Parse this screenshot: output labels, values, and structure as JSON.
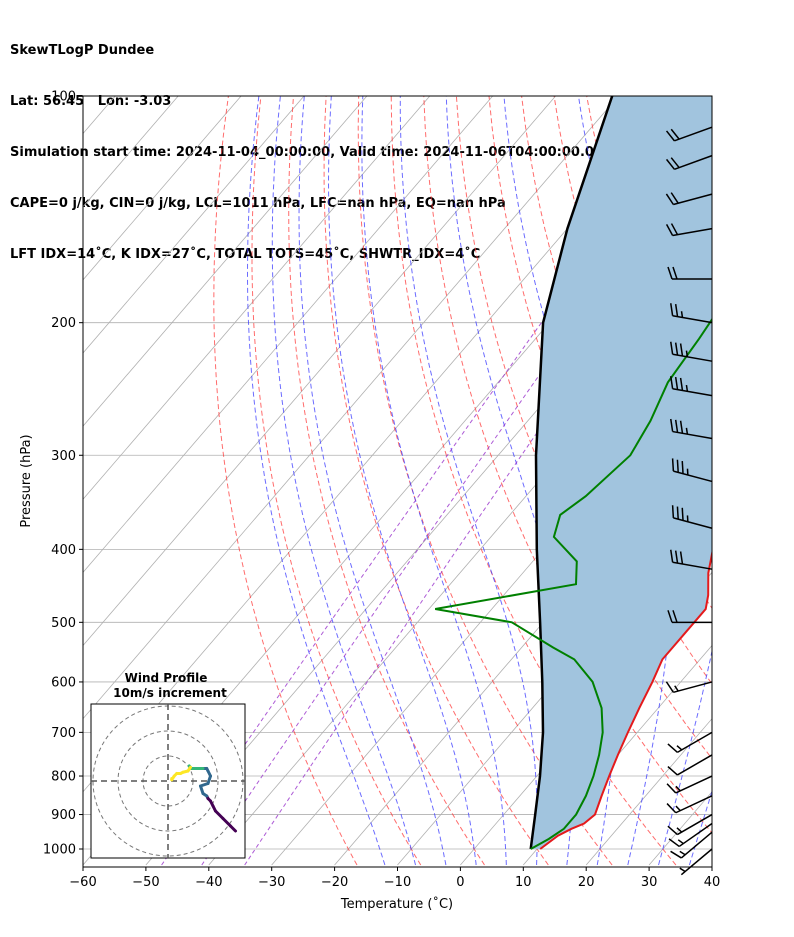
{
  "header": {
    "lines": [
      "SkewTLogP Dundee",
      "Lat: 56.45   Lon: -3.03",
      "Simulation start time: 2024-11-04_00:00:00, Valid time: 2024-11-06T04:00:00.00",
      "CAPE=0 j/kg, CIN=0 j/kg, LCL=1011 hPa, LFC=nan hPa, EQ=nan hPa",
      "LFT IDX=14˚C, K IDX=27˚C, TOTAL TOTS=45˚C, SHWTR_IDX=4˚C"
    ]
  },
  "chart_data": {
    "type": "skewt-logp",
    "xlabel": "Temperature (˚C)",
    "ylabel": "Pressure (hPa)",
    "xlim": [
      -60,
      40
    ],
    "ylim": [
      1050,
      100
    ],
    "x_ticks": [
      -60,
      -50,
      -40,
      -30,
      -20,
      -10,
      0,
      10,
      20,
      30,
      40
    ],
    "x_tick_labels": [
      "−60",
      "−50",
      "−40",
      "−30",
      "−20",
      "−10",
      "0",
      "10",
      "20",
      "30",
      "40"
    ],
    "y_ticks": [
      1000,
      900,
      800,
      700,
      600,
      500,
      400,
      300,
      200,
      100
    ],
    "y_tick_labels": [
      "1000",
      "900",
      "800",
      "700",
      "600",
      "500",
      "400",
      "300",
      "200",
      "100"
    ],
    "grid": true,
    "temperature": {
      "color": "#e41a1c",
      "points": [
        [
          1000,
          10.5
        ],
        [
          960,
          11.5
        ],
        [
          940,
          12.7
        ],
        [
          925,
          14
        ],
        [
          900,
          14.5
        ],
        [
          850,
          13
        ],
        [
          800,
          11.5
        ],
        [
          750,
          10
        ],
        [
          700,
          8.5
        ],
        [
          650,
          7
        ],
        [
          600,
          5.5
        ],
        [
          560,
          4
        ],
        [
          520,
          4
        ],
        [
          480,
          4
        ],
        [
          460,
          2.5
        ],
        [
          430,
          -0.5
        ],
        [
          400,
          -3
        ],
        [
          350,
          -8
        ],
        [
          300,
          -14
        ],
        [
          270,
          -18
        ],
        [
          250,
          -21
        ],
        [
          230,
          -22.5
        ],
        [
          210,
          -23.5
        ],
        [
          190,
          -24.5
        ],
        [
          175,
          -27
        ],
        [
          160,
          -28
        ],
        [
          145,
          -28.5
        ],
        [
          135,
          -28
        ],
        [
          125,
          -29
        ],
        [
          115,
          -29.5
        ],
        [
          108,
          -30
        ],
        [
          100,
          -31
        ]
      ]
    },
    "dewpoint": {
      "color": "#008000",
      "points": [
        [
          1000,
          9
        ],
        [
          970,
          10.5
        ],
        [
          940,
          11.5
        ],
        [
          900,
          11.5
        ],
        [
          850,
          10.5
        ],
        [
          800,
          9
        ],
        [
          750,
          7
        ],
        [
          700,
          4.5
        ],
        [
          650,
          1
        ],
        [
          600,
          -4
        ],
        [
          560,
          -10
        ],
        [
          540,
          -15
        ],
        [
          500,
          -25
        ],
        [
          480,
          -39
        ],
        [
          445,
          -20
        ],
        [
          415,
          -23
        ],
        [
          385,
          -30
        ],
        [
          360,
          -32
        ],
        [
          340,
          -30.5
        ],
        [
          300,
          -29
        ],
        [
          270,
          -30.5
        ],
        [
          240,
          -33
        ],
        [
          210,
          -34
        ],
        [
          190,
          -35
        ],
        [
          175,
          -35
        ],
        [
          160,
          -34.5
        ],
        [
          145,
          -36
        ],
        [
          135,
          -34
        ],
        [
          115,
          -33
        ],
        [
          100,
          -33
        ]
      ]
    },
    "parcel_profile": {
      "color": "#000000",
      "points": [
        [
          1000,
          9
        ],
        [
          900,
          5
        ],
        [
          800,
          0.5
        ],
        [
          700,
          -5
        ],
        [
          600,
          -12
        ],
        [
          500,
          -20.5
        ],
        [
          400,
          -31
        ],
        [
          300,
          -44
        ],
        [
          200,
          -61
        ],
        [
          150,
          -70
        ],
        [
          100,
          -81
        ]
      ]
    },
    "cape_cin_shading_color": "#a1c4de",
    "dry_adiabats": {
      "color": "#ff3b3b",
      "theta_C": [
        -20,
        -10,
        0,
        10,
        20,
        30,
        40,
        50,
        60,
        70,
        80,
        90,
        100,
        110,
        120
      ]
    },
    "moist_adiabats": {
      "color": "#3b3bff",
      "start_T_C": [
        -15,
        -10,
        -5,
        0,
        5,
        10,
        15,
        20,
        25,
        30,
        35
      ]
    },
    "mixing_ratio_lines": {
      "color": "#9932cc",
      "w_gkg": [
        0.05,
        0.1,
        0.2
      ]
    },
    "wind_barbs": [
      {
        "p": 1000,
        "speed_kt": 8,
        "dir": 230
      },
      {
        "p": 950,
        "speed_kt": 15,
        "dir": 230
      },
      {
        "p": 925,
        "speed_kt": 15,
        "dir": 235
      },
      {
        "p": 900,
        "speed_kt": 15,
        "dir": 240
      },
      {
        "p": 850,
        "speed_kt": 15,
        "dir": 245
      },
      {
        "p": 800,
        "speed_kt": 15,
        "dir": 245
      },
      {
        "p": 750,
        "speed_kt": 10,
        "dir": 240
      },
      {
        "p": 700,
        "speed_kt": 15,
        "dir": 240
      },
      {
        "p": 600,
        "speed_kt": 15,
        "dir": 255
      },
      {
        "p": 500,
        "speed_kt": 20,
        "dir": 270
      },
      {
        "p": 425,
        "speed_kt": 30,
        "dir": 280
      },
      {
        "p": 375,
        "speed_kt": 35,
        "dir": 285
      },
      {
        "p": 325,
        "speed_kt": 35,
        "dir": 285
      },
      {
        "p": 285,
        "speed_kt": 35,
        "dir": 280
      },
      {
        "p": 250,
        "speed_kt": 35,
        "dir": 280
      },
      {
        "p": 225,
        "speed_kt": 35,
        "dir": 280
      },
      {
        "p": 200,
        "speed_kt": 25,
        "dir": 280
      },
      {
        "p": 175,
        "speed_kt": 20,
        "dir": 270
      },
      {
        "p": 150,
        "speed_kt": 20,
        "dir": 260
      },
      {
        "p": 135,
        "speed_kt": 20,
        "dir": 255
      },
      {
        "p": 120,
        "speed_kt": 20,
        "dir": 250
      },
      {
        "p": 110,
        "speed_kt": 20,
        "dir": 250
      }
    ],
    "hodograph": {
      "title": "Wind Profile",
      "subtitle": "10m/s increment",
      "ring_speeds_ms": [
        10,
        20,
        30
      ],
      "points_uv": [
        [
          27,
          -20
        ],
        [
          25,
          -18
        ],
        [
          22,
          -15
        ],
        [
          19,
          -12
        ],
        [
          18,
          -10
        ],
        [
          17,
          -8
        ],
        [
          16,
          -7
        ],
        [
          15.5,
          -6
        ],
        [
          14,
          -5
        ],
        [
          13,
          -2
        ],
        [
          16,
          -1
        ],
        [
          17,
          2
        ],
        [
          16,
          4
        ],
        [
          15.5,
          5
        ],
        [
          14,
          5
        ],
        [
          12,
          5
        ],
        [
          11,
          5
        ],
        [
          10,
          5
        ],
        [
          9,
          5
        ],
        [
          8.5,
          6
        ],
        [
          9,
          5.5
        ],
        [
          8,
          4
        ],
        [
          6,
          3.5
        ],
        [
          5,
          3
        ],
        [
          3.5,
          3
        ],
        [
          2.5,
          2
        ],
        [
          1.5,
          0.5
        ],
        [
          1.5,
          1
        ]
      ],
      "colormap": [
        "#440154",
        "#31688e",
        "#35b779",
        "#fde725"
      ]
    }
  }
}
